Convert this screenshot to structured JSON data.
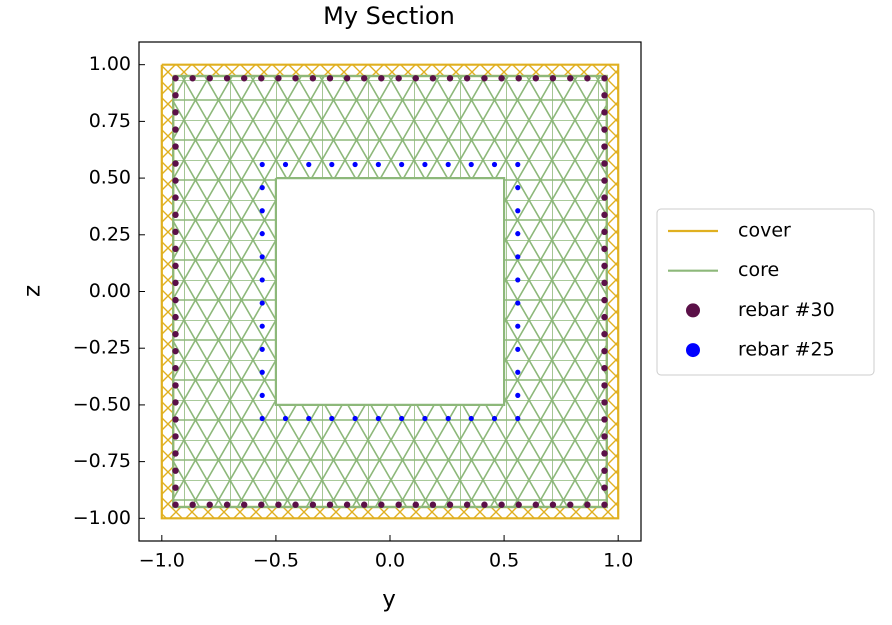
{
  "chart_data": {
    "type": "section",
    "title": "My Section",
    "x_label": "y",
    "y_label": "z",
    "xlim": [
      -1.1,
      1.1
    ],
    "ylim": [
      -1.1,
      1.1
    ],
    "xticks": [
      {
        "value": -1.0,
        "label": "−1.0"
      },
      {
        "value": -0.5,
        "label": "−0.5"
      },
      {
        "value": 0.0,
        "label": "0.0"
      },
      {
        "value": 0.5,
        "label": "0.5"
      },
      {
        "value": 1.0,
        "label": "1.0"
      }
    ],
    "yticks": [
      {
        "value": -1.0,
        "label": "−1.00"
      },
      {
        "value": -0.75,
        "label": "−0.75"
      },
      {
        "value": -0.5,
        "label": "−0.50"
      },
      {
        "value": -0.25,
        "label": "−0.25"
      },
      {
        "value": 0.0,
        "label": "0.00"
      },
      {
        "value": 0.25,
        "label": "0.25"
      },
      {
        "value": 0.5,
        "label": "0.50"
      },
      {
        "value": 0.75,
        "label": "0.75"
      },
      {
        "value": 1.0,
        "label": "1.00"
      }
    ],
    "legend": "outside-right",
    "series": [
      {
        "name": "cover",
        "type": "line",
        "color": "#e0b020",
        "x": [
          -1,
          1,
          1,
          -1,
          -1,
          null,
          -0.95,
          0.95,
          0.95,
          -0.95,
          -0.95
        ],
        "y": [
          1,
          1,
          -1,
          -1,
          1,
          null,
          0.95,
          0.95,
          -0.95,
          -0.95,
          0.95
        ]
      },
      {
        "name": "core",
        "type": "line",
        "color": "#8db87a",
        "x": [
          -0.95,
          0.95,
          0.95,
          -0.95,
          -0.95,
          null,
          -0.5,
          0.5,
          0.5,
          -0.5,
          -0.5
        ],
        "y": [
          0.95,
          0.95,
          -0.95,
          -0.95,
          0.95,
          null,
          0.5,
          0.5,
          -0.5,
          -0.5,
          0.5
        ]
      },
      {
        "name": "rebar #30",
        "type": "scatter",
        "color": "#5b1048",
        "x": [
          -0.94,
          -0.865,
          -0.79,
          -0.714,
          -0.639,
          -0.564,
          -0.489,
          -0.414,
          -0.338,
          -0.263,
          -0.188,
          -0.113,
          -0.038,
          0.038,
          0.113,
          0.188,
          0.263,
          0.338,
          0.414,
          0.489,
          0.564,
          0.639,
          0.714,
          0.79,
          0.865,
          0.94,
          0.94,
          0.94,
          0.94,
          0.94,
          0.94,
          0.94,
          0.94,
          0.94,
          0.94,
          0.94,
          0.94,
          0.94,
          0.94,
          0.94,
          0.94,
          0.94,
          0.94,
          0.94,
          0.94,
          0.94,
          0.94,
          0.94,
          0.94,
          0.94,
          0.94,
          0.865,
          0.79,
          0.714,
          0.639,
          0.564,
          0.489,
          0.414,
          0.338,
          0.263,
          0.188,
          0.113,
          0.038,
          -0.038,
          -0.113,
          -0.188,
          -0.263,
          -0.338,
          -0.414,
          -0.489,
          -0.564,
          -0.639,
          -0.714,
          -0.79,
          -0.865,
          -0.94,
          -0.94,
          -0.94,
          -0.94,
          -0.94,
          -0.94,
          -0.94,
          -0.94,
          -0.94,
          -0.94,
          -0.94,
          -0.94,
          -0.94,
          -0.94,
          -0.94,
          -0.94,
          -0.94,
          -0.94,
          -0.94,
          -0.94,
          -0.94,
          -0.94,
          -0.94,
          -0.94,
          -0.94
        ],
        "y": [
          0.94,
          0.94,
          0.94,
          0.94,
          0.94,
          0.94,
          0.94,
          0.94,
          0.94,
          0.94,
          0.94,
          0.94,
          0.94,
          0.94,
          0.94,
          0.94,
          0.94,
          0.94,
          0.94,
          0.94,
          0.94,
          0.94,
          0.94,
          0.94,
          0.94,
          0.94,
          0.865,
          0.79,
          0.714,
          0.639,
          0.564,
          0.489,
          0.414,
          0.338,
          0.263,
          0.188,
          0.113,
          0.038,
          -0.038,
          -0.113,
          -0.188,
          -0.263,
          -0.338,
          -0.414,
          -0.489,
          -0.564,
          -0.639,
          -0.714,
          -0.79,
          -0.865,
          -0.94,
          -0.94,
          -0.94,
          -0.94,
          -0.94,
          -0.94,
          -0.94,
          -0.94,
          -0.94,
          -0.94,
          -0.94,
          -0.94,
          -0.94,
          -0.94,
          -0.94,
          -0.94,
          -0.94,
          -0.94,
          -0.94,
          -0.94,
          -0.94,
          -0.94,
          -0.94,
          -0.94,
          -0.94,
          -0.94,
          -0.865,
          -0.79,
          -0.714,
          -0.639,
          -0.564,
          -0.489,
          -0.414,
          -0.338,
          -0.263,
          -0.188,
          -0.113,
          -0.038,
          0.038,
          0.113,
          0.188,
          0.263,
          0.338,
          0.414,
          0.489,
          0.564,
          0.639,
          0.714,
          0.79,
          0.865
        ]
      },
      {
        "name": "rebar #25",
        "type": "scatter",
        "color": "#0000ff",
        "x": [
          -0.56,
          -0.458,
          -0.356,
          -0.255,
          -0.153,
          -0.051,
          0.051,
          0.153,
          0.255,
          0.356,
          0.458,
          0.56,
          0.56,
          0.56,
          0.56,
          0.56,
          0.56,
          0.56,
          0.56,
          0.56,
          0.56,
          0.56,
          0.56,
          0.458,
          0.356,
          0.255,
          0.153,
          0.051,
          -0.051,
          -0.153,
          -0.255,
          -0.356,
          -0.458,
          -0.56,
          -0.56,
          -0.56,
          -0.56,
          -0.56,
          -0.56,
          -0.56,
          -0.56,
          -0.56,
          -0.56,
          -0.56
        ],
        "y": [
          0.56,
          0.56,
          0.56,
          0.56,
          0.56,
          0.56,
          0.56,
          0.56,
          0.56,
          0.56,
          0.56,
          0.56,
          0.458,
          0.356,
          0.255,
          0.153,
          0.051,
          -0.051,
          -0.153,
          -0.255,
          -0.356,
          -0.458,
          -0.56,
          -0.56,
          -0.56,
          -0.56,
          -0.56,
          -0.56,
          -0.56,
          -0.56,
          -0.56,
          -0.56,
          -0.56,
          -0.56,
          -0.458,
          -0.356,
          -0.255,
          -0.153,
          -0.051,
          0.051,
          0.153,
          0.255,
          0.356,
          0.458
        ]
      }
    ]
  }
}
